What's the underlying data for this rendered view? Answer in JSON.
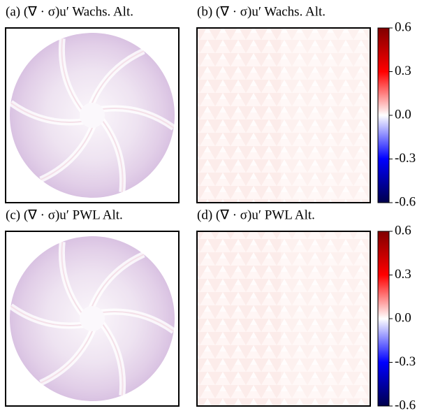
{
  "chart_data": [
    {
      "type": "heatmap",
      "title": "(a) (∇ · σ)u′ Wachs. Alt."
    },
    {
      "type": "heatmap",
      "title": "(b) (∇ · σ)u′ Wachs. Alt.",
      "zlim": [
        -0.6,
        0.6
      ],
      "zticks": [
        0.6,
        0.3,
        {
          "value": 0,
          "label": "0.0"
        },
        -0.3,
        -0.6
      ],
      "colormap": [
        "#00004c",
        "#0000ff",
        "#ffffff",
        "#ff0000",
        "#800000"
      ]
    },
    {
      "type": "heatmap",
      "title": "(c) (∇ · σ)u′ PWL Alt."
    },
    {
      "type": "heatmap",
      "title": "(d) (∇ · σ)u′ PWL Alt.",
      "zlim": [
        -0.6,
        0.6
      ],
      "zticks": [
        0.6,
        0.3,
        {
          "value": 0,
          "label": "0.0"
        },
        -0.3,
        -0.6
      ],
      "colormap": [
        "#00004c",
        "#0000ff",
        "#ffffff",
        "#ff0000",
        "#800000"
      ]
    }
  ]
}
